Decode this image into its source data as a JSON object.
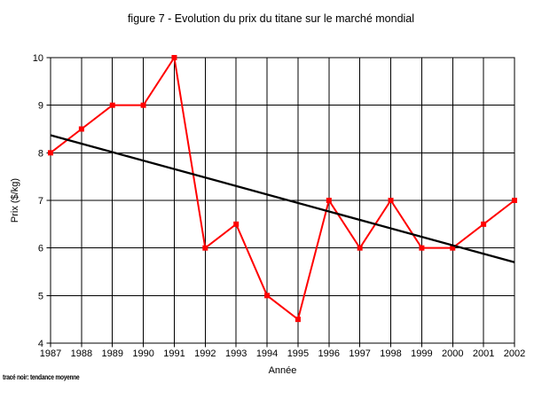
{
  "chart_data": {
    "type": "line",
    "title": "figure 7 - Evolution du prix du titane sur le marché mondial",
    "xlabel": "Année",
    "ylabel": "Prix ($/kg)",
    "annotation": "tracé noir: tendance moyenne",
    "x": [
      1987,
      1988,
      1989,
      1990,
      1991,
      1992,
      1993,
      1994,
      1995,
      1996,
      1997,
      1998,
      1999,
      2000,
      2001,
      2002
    ],
    "ylim": [
      4,
      10
    ],
    "ytick_step": 1,
    "grid": true,
    "legend_position": "none",
    "series": [
      {
        "name": "prix du titane",
        "color": "#ff0000",
        "marker": "square",
        "values": [
          8,
          8.5,
          9,
          9,
          10,
          6,
          6.5,
          5,
          4.5,
          7,
          6,
          7,
          6,
          6,
          6.5,
          7
        ]
      },
      {
        "name": "tendance moyenne",
        "color": "#000000",
        "marker": "none",
        "trend_line": true,
        "start": 8.37,
        "end": 5.7
      }
    ]
  },
  "colors": {
    "grid": "#000000",
    "axis": "#000000",
    "text": "#000000",
    "background": "#ffffff"
  }
}
